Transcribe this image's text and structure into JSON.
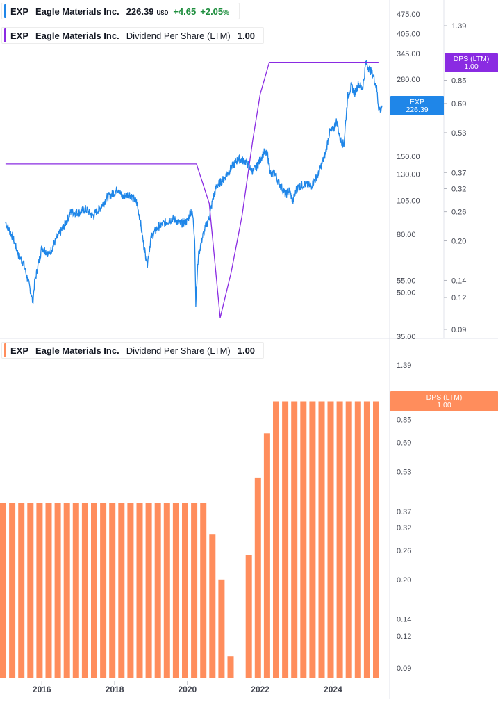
{
  "colors": {
    "price_line": "#1f86e8",
    "dps_line": "#8a2be2",
    "bar": "#ff8d5c",
    "tag_price": "#1f86e8",
    "tag_dps": "#8a2be2",
    "tag_bar": "#ff8d5c",
    "axis_text": "#434651",
    "change_positive": "#1e8e3e"
  },
  "legend_price": {
    "symbol": "EXP",
    "name": "Eagle Materials Inc.",
    "price": "226.39",
    "currency": "USD",
    "change": "+4.65",
    "change_pct": "+2.05",
    "pct_sign": "%"
  },
  "legend_dps_top": {
    "symbol": "EXP",
    "name": "Eagle Materials Inc.",
    "indicator": "Dividend Per Share (LTM)",
    "value": "1.00"
  },
  "legend_dps_bottom": {
    "symbol": "EXP",
    "name": "Eagle Materials Inc.",
    "indicator": "Dividend Per Share (LTM)",
    "value": "1.00"
  },
  "chart_data": [
    {
      "type": "line",
      "title": "",
      "scale": "log",
      "series": [
        {
          "name": "EXP",
          "x": [
            2015.0,
            2015.2,
            2015.35,
            2015.5,
            2015.6,
            2015.7,
            2015.75,
            2015.8,
            2016.0,
            2016.2,
            2016.4,
            2016.6,
            2016.8,
            2017.0,
            2017.2,
            2017.4,
            2017.6,
            2017.8,
            2018.0,
            2018.1,
            2018.2,
            2018.4,
            2018.6,
            2018.7,
            2018.8,
            2018.9,
            2019.0,
            2019.2,
            2019.4,
            2019.6,
            2019.8,
            2020.0,
            2020.1,
            2020.15,
            2020.2,
            2020.23,
            2020.3,
            2020.4,
            2020.5,
            2020.6,
            2020.7,
            2020.8,
            2021.0,
            2021.2,
            2021.4,
            2021.6,
            2021.8,
            2021.9,
            2022.0,
            2022.1,
            2022.2,
            2022.3,
            2022.4,
            2022.5,
            2022.6,
            2022.7,
            2022.8,
            2022.9,
            2023.0,
            2023.2,
            2023.4,
            2023.6,
            2023.8,
            2023.9,
            2024.0,
            2024.1,
            2024.2,
            2024.3,
            2024.4,
            2024.5,
            2024.6,
            2024.7,
            2024.8,
            2024.85,
            2024.9,
            2025.0,
            2025.1,
            2025.2,
            2025.25,
            2025.3,
            2025.35
          ],
          "values": [
            88,
            78,
            68,
            63,
            56,
            50,
            46,
            54,
            72,
            68,
            77,
            85,
            96,
            95,
            98,
            93,
            99,
            108,
            112,
            116,
            108,
            111,
            104,
            90,
            73,
            63,
            78,
            85,
            88,
            91,
            87,
            89,
            97,
            92,
            78,
            46,
            67,
            77,
            85,
            92,
            106,
            118,
            125,
            137,
            147,
            144,
            133,
            138,
            146,
            155,
            152,
            128,
            132,
            122,
            116,
            110,
            114,
            104,
            116,
            120,
            118,
            130,
            155,
            182,
            186,
            200,
            172,
            165,
            242,
            265,
            250,
            270,
            260,
            280,
            320,
            305,
            290,
            260,
            225,
            218,
            226.39
          ],
          "last_value": "226.39"
        },
        {
          "name": "DPS (LTM)",
          "x": [
            2015.0,
            2020.25,
            2020.6,
            2020.9,
            2021.2,
            2021.5,
            2021.8,
            2022.0,
            2022.25,
            2025.25
          ],
          "values": [
            0.4,
            0.4,
            0.28,
            0.1,
            0.15,
            0.25,
            0.5,
            0.75,
            1.0,
            1.0
          ],
          "last_value": "1.00"
        }
      ],
      "left_ticks": [
        "475.00",
        "405.00",
        "345.00",
        "280.00",
        "150.00",
        "130.00",
        "105.00",
        "80.00",
        "55.00",
        "50.00",
        "35.00"
      ],
      "right_ticks": [
        "1.39",
        "0.85",
        "0.69",
        "0.53",
        "0.37",
        "0.32",
        "0.26",
        "0.20",
        "0.14",
        "0.12",
        "0.09"
      ],
      "tags": [
        {
          "label": "EXP",
          "value": "226.39"
        },
        {
          "label": "DPS (LTM)",
          "value": "1.00"
        }
      ]
    },
    {
      "type": "bar",
      "title": "",
      "scale": "log",
      "series": [
        {
          "name": "Dividend Per Share (LTM)",
          "x": [
            2014.85,
            2015.1,
            2015.35,
            2015.6,
            2015.85,
            2016.1,
            2016.35,
            2016.6,
            2016.85,
            2017.1,
            2017.35,
            2017.6,
            2017.85,
            2018.1,
            2018.35,
            2018.6,
            2018.85,
            2019.1,
            2019.35,
            2019.6,
            2019.85,
            2020.1,
            2020.35,
            2020.6,
            2020.85,
            2021.1,
            2021.35,
            2021.6,
            2021.85,
            2022.1,
            2022.35,
            2022.6,
            2022.85,
            2023.1,
            2023.35,
            2023.6,
            2023.85,
            2024.1,
            2024.35,
            2024.6,
            2024.85,
            2025.1
          ],
          "values": [
            0.4,
            0.4,
            0.4,
            0.4,
            0.4,
            0.4,
            0.4,
            0.4,
            0.4,
            0.4,
            0.4,
            0.4,
            0.4,
            0.4,
            0.4,
            0.4,
            0.4,
            0.4,
            0.4,
            0.4,
            0.4,
            0.4,
            0.4,
            0.3,
            0.2,
            0.1,
            0.0,
            0.25,
            0.5,
            0.75,
            1.0,
            1.0,
            1.0,
            1.0,
            1.0,
            1.0,
            1.0,
            1.0,
            1.0,
            1.0,
            1.0,
            1.0
          ]
        }
      ],
      "x_ticks": [
        "2016",
        "2018",
        "2020",
        "2022",
        "2024"
      ],
      "x_tick_values": [
        2016,
        2018,
        2020,
        2022,
        2024
      ],
      "y_ticks": [
        "1.39",
        "1.00",
        "0.85",
        "0.69",
        "0.53",
        "0.37",
        "0.32",
        "0.26",
        "0.20",
        "0.14",
        "0.12",
        "0.09"
      ],
      "tag": {
        "label": "DPS (LTM)",
        "value": "1.00"
      }
    }
  ]
}
